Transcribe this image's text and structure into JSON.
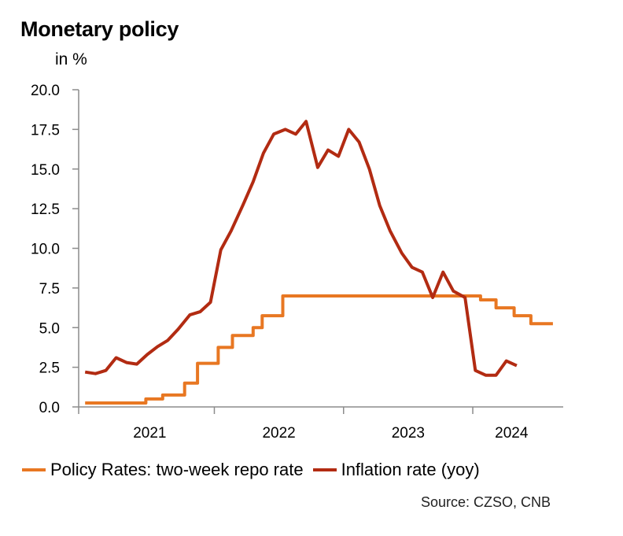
{
  "chart_data": {
    "type": "line",
    "title": "Monetary policy",
    "ylabel": "in %",
    "ylim": [
      0,
      20
    ],
    "yticks": [
      "0.0",
      "2.5",
      "5.0",
      "7.5",
      "10.0",
      "12.5",
      "15.0",
      "17.5",
      "20.0"
    ],
    "xlim": [
      2020.95,
      2024.7
    ],
    "xticks": [
      {
        "label": "2021",
        "value": 2021.5
      },
      {
        "label": "2022",
        "value": 2022.5
      },
      {
        "label": "2023",
        "value": 2023.5
      },
      {
        "label": "2024",
        "value": 2024.3
      }
    ],
    "grid": false,
    "legend_position": "bottom",
    "series": [
      {
        "name": "Policy Rates: two-week repo rate",
        "color": "#E87722",
        "step": true,
        "points": [
          [
            2021.0,
            0.25
          ],
          [
            2021.47,
            0.5
          ],
          [
            2021.6,
            0.75
          ],
          [
            2021.77,
            1.5
          ],
          [
            2021.87,
            2.75
          ],
          [
            2022.03,
            3.75
          ],
          [
            2022.14,
            4.5
          ],
          [
            2022.3,
            5.0
          ],
          [
            2022.37,
            5.75
          ],
          [
            2022.53,
            7.0
          ],
          [
            2024.06,
            6.75
          ],
          [
            2024.18,
            6.25
          ],
          [
            2024.32,
            5.75
          ],
          [
            2024.45,
            5.25
          ],
          [
            2024.62,
            5.25
          ]
        ]
      },
      {
        "name": "Inflation rate (yoy)",
        "color": "#B22B12",
        "step": false,
        "points": [
          [
            2021.0,
            2.2
          ],
          [
            2021.08,
            2.1
          ],
          [
            2021.16,
            2.3
          ],
          [
            2021.24,
            3.1
          ],
          [
            2021.32,
            2.8
          ],
          [
            2021.4,
            2.7
          ],
          [
            2021.48,
            3.3
          ],
          [
            2021.56,
            3.8
          ],
          [
            2021.64,
            4.2
          ],
          [
            2021.72,
            4.9
          ],
          [
            2021.81,
            5.8
          ],
          [
            2021.89,
            6.0
          ],
          [
            2021.97,
            6.6
          ],
          [
            2022.05,
            9.9
          ],
          [
            2022.13,
            11.1
          ],
          [
            2022.22,
            12.7
          ],
          [
            2022.3,
            14.2
          ],
          [
            2022.38,
            16.0
          ],
          [
            2022.46,
            17.2
          ],
          [
            2022.55,
            17.5
          ],
          [
            2022.63,
            17.2
          ],
          [
            2022.71,
            18.0
          ],
          [
            2022.8,
            15.1
          ],
          [
            2022.88,
            16.2
          ],
          [
            2022.96,
            15.8
          ],
          [
            2023.04,
            17.5
          ],
          [
            2023.12,
            16.7
          ],
          [
            2023.2,
            15.0
          ],
          [
            2023.28,
            12.7
          ],
          [
            2023.36,
            11.1
          ],
          [
            2023.45,
            9.7
          ],
          [
            2023.53,
            8.8
          ],
          [
            2023.61,
            8.5
          ],
          [
            2023.69,
            6.9
          ],
          [
            2023.77,
            8.5
          ],
          [
            2023.85,
            7.3
          ],
          [
            2023.94,
            6.9
          ],
          [
            2024.02,
            2.3
          ],
          [
            2024.1,
            2.0
          ],
          [
            2024.18,
            2.0
          ],
          [
            2024.26,
            2.9
          ],
          [
            2024.34,
            2.6
          ]
        ]
      }
    ],
    "source": "Source: CZSO, CNB"
  }
}
